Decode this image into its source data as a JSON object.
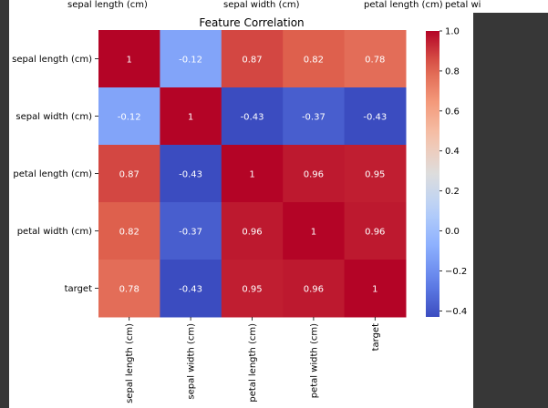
{
  "top_cutoff_labels": [
    "sepal length (cm)",
    "sepal width (cm)",
    "petal length (cm)",
    "petal wi"
  ],
  "chart_data": {
    "type": "heatmap",
    "title": "Feature Correlation",
    "x_labels": [
      "sepal length (cm)",
      "sepal width (cm)",
      "petal length (cm)",
      "petal width (cm)",
      "target"
    ],
    "y_labels": [
      "sepal length (cm)",
      "sepal width (cm)",
      "petal length (cm)",
      "petal width (cm)",
      "target"
    ],
    "values": [
      [
        1,
        -0.12,
        0.87,
        0.82,
        0.78
      ],
      [
        -0.12,
        1,
        -0.43,
        -0.37,
        -0.43
      ],
      [
        0.87,
        -0.43,
        1,
        0.96,
        0.95
      ],
      [
        0.82,
        -0.37,
        0.96,
        1,
        0.96
      ],
      [
        0.78,
        -0.43,
        0.95,
        0.96,
        1
      ]
    ],
    "annotations": [
      [
        "1",
        "-0.12",
        "0.87",
        "0.82",
        "0.78"
      ],
      [
        "-0.12",
        "1",
        "-0.43",
        "-0.37",
        "-0.43"
      ],
      [
        "0.87",
        "-0.43",
        "1",
        "0.96",
        "0.95"
      ],
      [
        "0.82",
        "-0.37",
        "0.96",
        "1",
        "0.96"
      ],
      [
        "0.78",
        "-0.43",
        "0.95",
        "0.96",
        "1"
      ]
    ],
    "colormap": "coolwarm",
    "colorbar": {
      "range": [
        -0.43,
        1.0
      ],
      "ticks": [
        1.0,
        0.8,
        0.6,
        0.4,
        0.2,
        0.0,
        -0.2,
        -0.4
      ],
      "tick_labels": [
        "1.0",
        "0.8",
        "0.6",
        "0.4",
        "0.2",
        "0.0",
        "−0.2",
        "−0.4"
      ]
    }
  }
}
